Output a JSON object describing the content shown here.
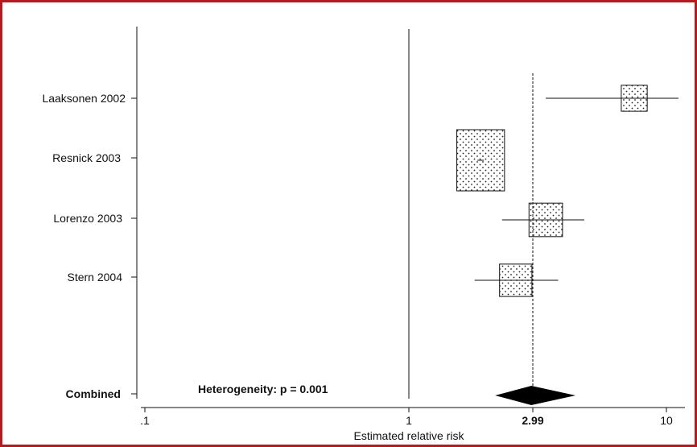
{
  "chart_data": {
    "type": "forest",
    "title": "",
    "xlabel": "Estimated relative risk",
    "x_scale": "log",
    "xlim": [
      0.095,
      12
    ],
    "x_ticks": [
      {
        "value": 0.1,
        "label": ".1"
      },
      {
        "value": 1,
        "label": "1"
      },
      {
        "value": 2.99,
        "label": "2.99"
      },
      {
        "value": 10,
        "label": "10"
      }
    ],
    "reference_line": 1,
    "pooled_estimate_line": 2.99,
    "studies": [
      {
        "label": "Laaksonen 2002",
        "rr": 7.5,
        "ci": [
          3.4,
          11.5
        ],
        "weight": 0.18
      },
      {
        "label": "Resnick 2003",
        "rr": 1.9,
        "ci": [
          1.9,
          1.9
        ],
        "weight": 1.0
      },
      {
        "label": "Lorenzo 2003",
        "rr": 3.4,
        "ci": [
          2.3,
          4.8
        ],
        "weight": 0.3
      },
      {
        "label": "Stern 2004",
        "rr": 2.6,
        "ci": [
          1.8,
          3.8
        ],
        "weight": 0.28
      }
    ],
    "combined": {
      "label": "Combined",
      "rr": 2.99,
      "ci": [
        1.9,
        4.6
      ]
    },
    "annotation": "Heterogeneity: p = 0.001"
  },
  "colors": {
    "frame": "#b8191c",
    "ink": "#111111",
    "diamond": "#000000"
  }
}
